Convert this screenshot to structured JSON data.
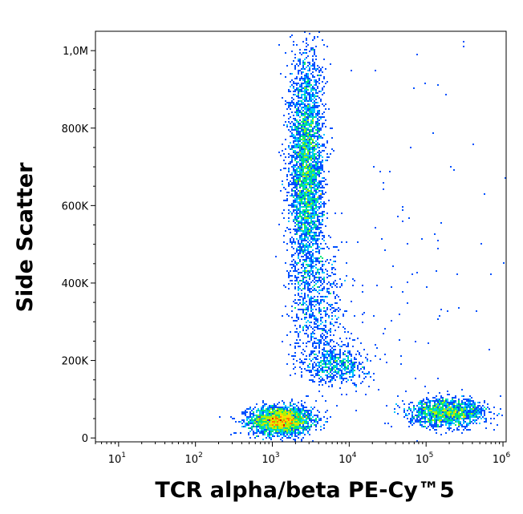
{
  "chart_data": {
    "type": "scatter",
    "subtype": "flow-cytometry density dot plot",
    "title": "",
    "xlabel": "TCR alpha/beta PE-Cy™5",
    "ylabel": "Side Scatter",
    "x_scale": "log",
    "xlim": [
      5,
      1100000
    ],
    "ylim": [
      -10000,
      1050000
    ],
    "x_ticks": [
      {
        "value": 10,
        "base": "10",
        "exp": "1"
      },
      {
        "value": 100,
        "base": "10",
        "exp": "2"
      },
      {
        "value": 1000,
        "base": "10",
        "exp": "3"
      },
      {
        "value": 10000,
        "base": "10",
        "exp": "4"
      },
      {
        "value": 100000,
        "base": "10",
        "exp": "5"
      },
      {
        "value": 1000000,
        "base": "10",
        "exp": "6"
      }
    ],
    "y_ticks": [
      {
        "value": 0,
        "label": "0"
      },
      {
        "value": 200000,
        "label": "200K"
      },
      {
        "value": 400000,
        "label": "400K"
      },
      {
        "value": 600000,
        "label": "600K"
      },
      {
        "value": 800000,
        "label": "800K"
      },
      {
        "value": 1000000,
        "label": "1,0M"
      }
    ],
    "color_scale": [
      "#0000c8",
      "#0050ff",
      "#00c8ff",
      "#00e678",
      "#b4f000",
      "#ffdc00",
      "#ff7800",
      "#e60000"
    ],
    "populations": [
      {
        "x_center": 1300,
        "y_center": 45000,
        "x_spread_log": 0.2,
        "y_spread": 18000,
        "count": 2600
      },
      {
        "x_center": 2800,
        "y_center": 690000,
        "x_spread_log": 0.11,
        "y_spread": 150000,
        "count": 3600
      },
      {
        "x_center": 4000,
        "y_center": 330000,
        "x_spread_log": 0.18,
        "y_spread": 90000,
        "count": 650
      },
      {
        "x_center": 7000,
        "y_center": 190000,
        "x_spread_log": 0.2,
        "y_spread": 25000,
        "count": 550
      },
      {
        "x_center": 190000,
        "y_center": 65000,
        "x_spread_log": 0.25,
        "y_spread": 18000,
        "count": 1500
      },
      {
        "x_center": 100000,
        "y_center": 500000,
        "x_spread_log": 0.6,
        "y_spread": 300000,
        "count": 90
      }
    ],
    "grid": false,
    "legend": "none"
  }
}
